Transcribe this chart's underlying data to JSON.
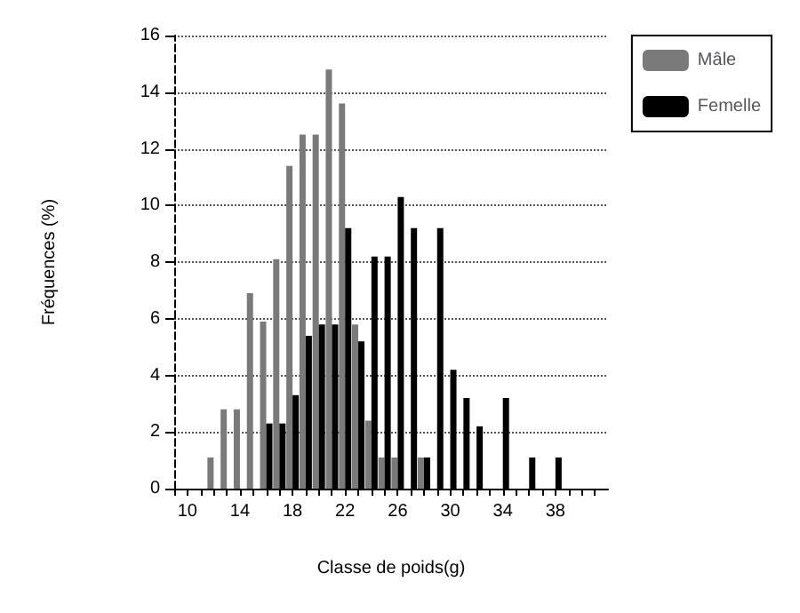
{
  "chart_data": {
    "type": "bar",
    "xlabel": "Classe de poids(g)",
    "ylabel": "Fréquences (%)",
    "x": [
      12,
      13,
      14,
      15,
      16,
      17,
      18,
      19,
      20,
      21,
      22,
      23,
      24,
      25,
      26,
      27,
      28,
      29,
      30,
      31,
      32,
      33,
      34,
      35,
      36,
      37,
      38
    ],
    "series": [
      {
        "name": "Mâle",
        "color": "#7a7a7a",
        "values": [
          1.1,
          2.8,
          2.8,
          6.9,
          5.9,
          8.1,
          11.4,
          12.5,
          12.5,
          14.8,
          13.6,
          5.8,
          2.4,
          1.1,
          1.1,
          null,
          1.1,
          null,
          null,
          null,
          null,
          null,
          null,
          null,
          null,
          null,
          null
        ]
      },
      {
        "name": "Femelle",
        "color": "#000000",
        "values": [
          null,
          null,
          null,
          null,
          2.3,
          2.3,
          3.3,
          5.4,
          5.8,
          5.8,
          9.2,
          5.2,
          8.2,
          8.2,
          10.3,
          9.2,
          1.1,
          9.2,
          4.2,
          3.2,
          2.2,
          null,
          3.2,
          null,
          1.1,
          null,
          1.1
        ]
      }
    ],
    "xlim": [
      9,
      42
    ],
    "xticks": [
      {
        "value": 9,
        "label": null
      },
      10,
      {
        "value": 11,
        "label": null
      },
      {
        "value": 12,
        "label": null
      },
      {
        "value": 13,
        "label": null
      },
      14,
      {
        "value": 15,
        "label": null
      },
      {
        "value": 16,
        "label": null
      },
      {
        "value": 17,
        "label": null
      },
      18,
      {
        "value": 19,
        "label": null
      },
      {
        "value": 20,
        "label": null
      },
      {
        "value": 21,
        "label": null
      },
      22,
      {
        "value": 23,
        "label": null
      },
      {
        "value": 24,
        "label": null
      },
      {
        "value": 25,
        "label": null
      },
      26,
      {
        "value": 27,
        "label": null
      },
      {
        "value": 28,
        "label": null
      },
      {
        "value": 29,
        "label": null
      },
      30,
      {
        "value": 31,
        "label": null
      },
      {
        "value": 32,
        "label": null
      },
      {
        "value": 33,
        "label": null
      },
      34,
      {
        "value": 35,
        "label": null
      },
      {
        "value": 36,
        "label": null
      },
      {
        "value": 37,
        "label": null
      },
      38,
      {
        "value": 39,
        "label": null
      },
      {
        "value": 40,
        "label": null
      },
      {
        "value": 41,
        "label": null
      }
    ],
    "ylim": [
      0,
      16
    ],
    "yticks": [
      0,
      2,
      4,
      6,
      8,
      10,
      12,
      14,
      16
    ],
    "grid": "y",
    "legend": "top right"
  }
}
